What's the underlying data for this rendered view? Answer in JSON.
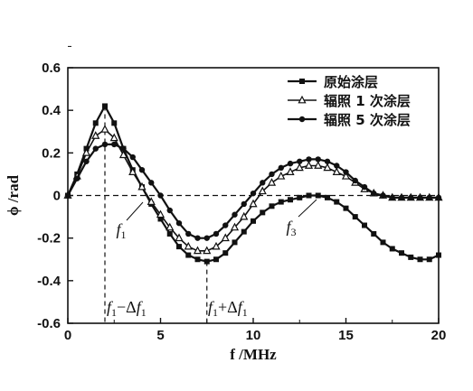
{
  "chart_data": {
    "type": "line",
    "title": "",
    "xlabel": "f /MHz",
    "ylabel": "ϕ /rad",
    "xlim": [
      0,
      20
    ],
    "ylim": [
      -0.6,
      0.6
    ],
    "xticks": [
      0,
      5,
      10,
      15,
      20
    ],
    "xtick_labels": [
      "0",
      "5",
      "10",
      "15",
      "20"
    ],
    "yticks": [
      -0.6,
      -0.4,
      -0.2,
      0,
      0.2,
      0.4,
      0.6
    ],
    "ytick_labels": [
      "-0.6",
      "-0.4",
      "-0.2",
      "0",
      "0.2",
      "0.4",
      "0.6"
    ],
    "grid": false,
    "legend_position": "top-right",
    "series": [
      {
        "name": "原始涂层",
        "marker": "square",
        "x": [
          0,
          0.5,
          1,
          1.5,
          2,
          2.5,
          3,
          3.5,
          4,
          4.5,
          5,
          5.5,
          6,
          6.5,
          7,
          7.5,
          8,
          8.5,
          9,
          9.5,
          10,
          10.5,
          11,
          11.5,
          12,
          12.5,
          13,
          13.5,
          14,
          14.5,
          15,
          15.5,
          16,
          16.5,
          17,
          17.5,
          18,
          18.5,
          19,
          19.5,
          20
        ],
        "y": [
          0.0,
          0.1,
          0.22,
          0.34,
          0.42,
          0.34,
          0.22,
          0.12,
          0.04,
          -0.04,
          -0.11,
          -0.18,
          -0.24,
          -0.28,
          -0.3,
          -0.31,
          -0.3,
          -0.27,
          -0.22,
          -0.17,
          -0.12,
          -0.08,
          -0.05,
          -0.03,
          -0.02,
          -0.01,
          0.0,
          0.0,
          -0.01,
          -0.03,
          -0.06,
          -0.1,
          -0.14,
          -0.18,
          -0.22,
          -0.25,
          -0.27,
          -0.29,
          -0.3,
          -0.3,
          -0.28
        ]
      },
      {
        "name": "辐照 1 次涂层",
        "marker": "triangle-open",
        "x": [
          0,
          0.5,
          1,
          1.5,
          2,
          2.5,
          3,
          3.5,
          4,
          4.5,
          5,
          5.5,
          6,
          6.5,
          7,
          7.5,
          8,
          8.5,
          9,
          9.5,
          10,
          10.5,
          11,
          11.5,
          12,
          12.5,
          13,
          13.5,
          14,
          14.5,
          15,
          15.5,
          16,
          16.5,
          17,
          17.5,
          18,
          18.5,
          19,
          19.5,
          20
        ],
        "y": [
          0.0,
          0.09,
          0.2,
          0.28,
          0.31,
          0.27,
          0.19,
          0.11,
          0.04,
          -0.03,
          -0.09,
          -0.15,
          -0.2,
          -0.24,
          -0.26,
          -0.26,
          -0.24,
          -0.2,
          -0.15,
          -0.1,
          -0.04,
          0.02,
          0.06,
          0.09,
          0.11,
          0.13,
          0.14,
          0.14,
          0.13,
          0.11,
          0.09,
          0.06,
          0.03,
          0.01,
          0.0,
          -0.01,
          -0.01,
          -0.01,
          -0.01,
          -0.01,
          -0.01
        ]
      },
      {
        "name": "辐照 5 次涂层",
        "marker": "circle",
        "x": [
          0,
          0.5,
          1,
          1.5,
          2,
          2.5,
          3,
          3.5,
          4,
          4.5,
          5,
          5.5,
          6,
          6.5,
          7,
          7.5,
          8,
          8.5,
          9,
          9.5,
          10,
          10.5,
          11,
          11.5,
          12,
          12.5,
          13,
          13.5,
          14,
          14.5,
          15,
          15.5,
          16,
          16.5,
          17,
          17.5,
          18,
          18.5,
          19,
          19.5,
          20
        ],
        "y": [
          0.0,
          0.08,
          0.16,
          0.22,
          0.24,
          0.24,
          0.22,
          0.18,
          0.12,
          0.06,
          0.0,
          -0.07,
          -0.13,
          -0.18,
          -0.2,
          -0.2,
          -0.18,
          -0.14,
          -0.09,
          -0.04,
          0.01,
          0.06,
          0.1,
          0.13,
          0.15,
          0.16,
          0.17,
          0.17,
          0.16,
          0.14,
          0.11,
          0.07,
          0.04,
          0.01,
          0.0,
          -0.01,
          -0.01,
          -0.01,
          -0.01,
          -0.01,
          -0.01
        ]
      }
    ],
    "annotations": {
      "left_marker_x": 2,
      "right_marker_x": 7.5,
      "label_f1": "f1",
      "label_f3": "f3",
      "label_left": "f1−Δf1",
      "label_right": "f1+Δf1"
    }
  }
}
